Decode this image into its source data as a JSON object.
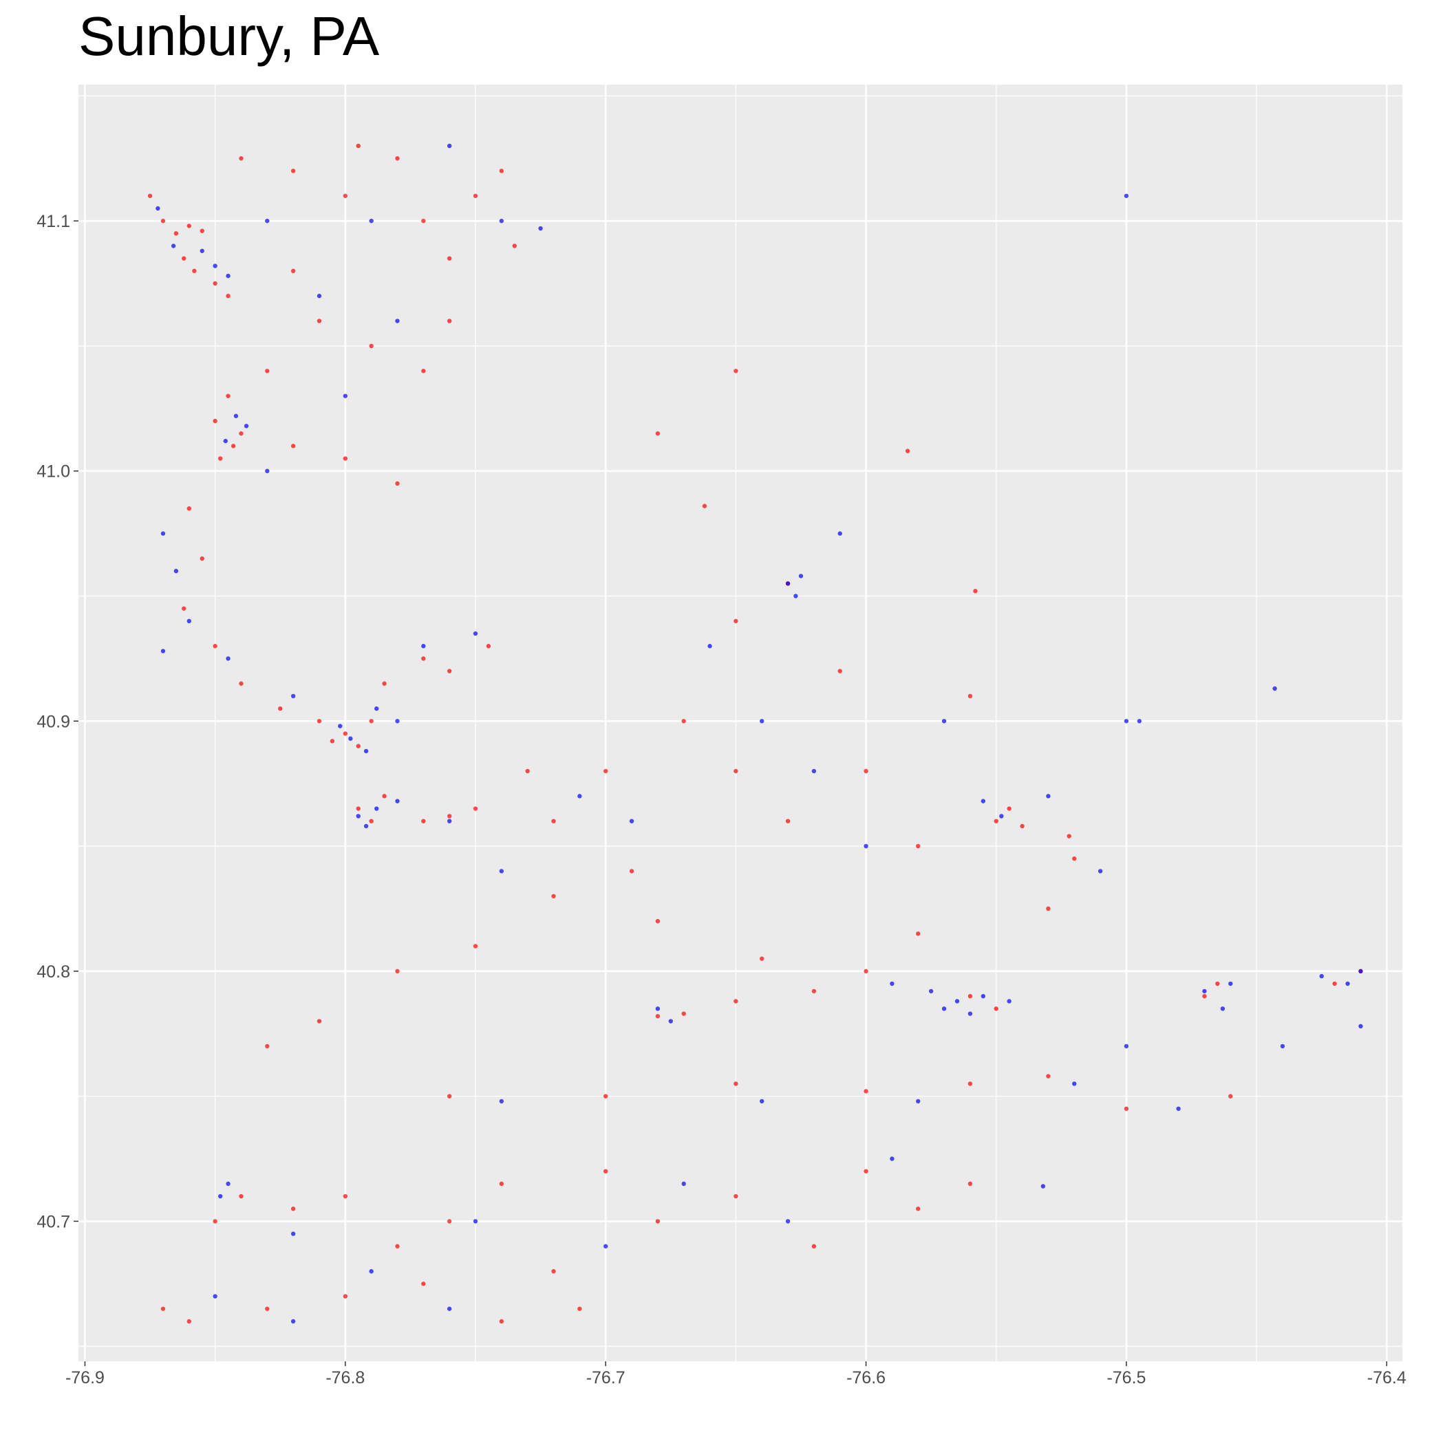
{
  "chart_data": {
    "type": "scatter",
    "title": "Sunbury, PA",
    "xlim": [
      -76.9025,
      -76.394
    ],
    "ylim": [
      40.644,
      41.1545
    ],
    "xticks": [
      -76.9,
      -76.8,
      -76.7,
      -76.6,
      -76.5,
      -76.4
    ],
    "yticks": [
      40.7,
      40.8,
      40.9,
      {
        "value": 41.0,
        "label": "41.0"
      },
      41.1
    ],
    "grid": true,
    "opacity": 0.7,
    "series": [
      {
        "color": "#ff0000",
        "x": [
          -76.87,
          -76.865,
          -76.86,
          -76.855,
          -76.862,
          -76.858,
          -76.85,
          -76.845,
          -76.875,
          -76.84,
          -76.82,
          -76.8,
          -76.795,
          -76.78,
          -76.77,
          -76.76,
          -76.75,
          -76.74,
          -76.735,
          -76.82,
          -76.81,
          -76.79,
          -76.77,
          -76.76,
          -76.83,
          -76.845,
          -76.85,
          -76.843,
          -76.848,
          -76.84,
          -76.82,
          -76.8,
          -76.78,
          -76.86,
          -76.855,
          -76.862,
          -76.85,
          -76.84,
          -76.825,
          -76.81,
          -76.8,
          -76.795,
          -76.79,
          -76.805,
          -76.785,
          -76.77,
          -76.76,
          -76.745,
          -76.795,
          -76.79,
          -76.785,
          -76.77,
          -76.76,
          -76.75,
          -76.73,
          -76.72,
          -76.7,
          -76.69,
          -76.67,
          -76.65,
          -76.63,
          -76.61,
          -76.6,
          -76.58,
          -76.56,
          -76.55,
          -76.545,
          -76.54,
          -76.52,
          -76.53,
          -76.58,
          -76.6,
          -76.64,
          -76.68,
          -76.72,
          -76.75,
          -76.78,
          -76.81,
          -76.83,
          -76.68,
          -76.67,
          -76.65,
          -76.62,
          -76.56,
          -76.55,
          -76.47,
          -76.465,
          -76.42,
          -76.41,
          -76.76,
          -76.7,
          -76.65,
          -76.6,
          -76.56,
          -76.53,
          -76.5,
          -76.46,
          -76.85,
          -76.84,
          -76.82,
          -76.8,
          -76.78,
          -76.76,
          -76.74,
          -76.72,
          -76.7,
          -76.68,
          -76.65,
          -76.62,
          -76.6,
          -76.58,
          -76.56,
          -76.87,
          -76.86,
          -76.83,
          -76.8,
          -76.77,
          -76.74,
          -76.71,
          -76.65,
          -76.63,
          -76.65,
          -76.68,
          -76.584,
          -76.662,
          -76.522,
          -76.558
        ],
        "values": [
          41.1,
          41.095,
          41.098,
          41.096,
          41.085,
          41.08,
          41.075,
          41.07,
          41.11,
          41.125,
          41.12,
          41.11,
          41.13,
          41.125,
          41.1,
          41.085,
          41.11,
          41.12,
          41.09,
          41.08,
          41.06,
          41.05,
          41.04,
          41.06,
          41.04,
          41.03,
          41.02,
          41.01,
          41.005,
          41.015,
          41.01,
          41.005,
          40.995,
          40.985,
          40.965,
          40.945,
          40.93,
          40.915,
          40.905,
          40.9,
          40.895,
          40.89,
          40.9,
          40.892,
          40.915,
          40.925,
          40.92,
          40.93,
          40.865,
          40.86,
          40.87,
          40.86,
          40.862,
          40.865,
          40.88,
          40.86,
          40.88,
          40.84,
          40.9,
          40.88,
          40.86,
          40.92,
          40.88,
          40.85,
          40.91,
          40.86,
          40.865,
          40.858,
          40.845,
          40.825,
          40.815,
          40.8,
          40.805,
          40.82,
          40.83,
          40.81,
          40.8,
          40.78,
          40.77,
          40.782,
          40.783,
          40.788,
          40.792,
          40.79,
          40.785,
          40.79,
          40.795,
          40.795,
          40.8,
          40.75,
          40.75,
          40.755,
          40.752,
          40.755,
          40.758,
          40.745,
          40.75,
          40.7,
          40.71,
          40.705,
          40.71,
          40.69,
          40.7,
          40.715,
          40.68,
          40.72,
          40.7,
          40.71,
          40.69,
          40.72,
          40.705,
          40.715,
          40.665,
          40.66,
          40.665,
          40.67,
          40.675,
          40.66,
          40.665,
          40.94,
          40.955,
          41.04,
          41.015,
          41.008,
          40.986,
          40.854,
          40.952
        ]
      },
      {
        "color": "#0000ff",
        "x": [
          -76.872,
          -76.866,
          -76.855,
          -76.85,
          -76.845,
          -76.83,
          -76.79,
          -76.76,
          -76.74,
          -76.725,
          -76.81,
          -76.78,
          -76.8,
          -76.842,
          -76.838,
          -76.846,
          -76.83,
          -76.87,
          -76.865,
          -76.87,
          -76.86,
          -76.845,
          -76.82,
          -76.798,
          -76.792,
          -76.802,
          -76.788,
          -76.78,
          -76.77,
          -76.75,
          -76.795,
          -76.788,
          -76.792,
          -76.78,
          -76.76,
          -76.74,
          -76.71,
          -76.69,
          -76.66,
          -76.64,
          -76.62,
          -76.6,
          -76.57,
          -76.555,
          -76.548,
          -76.53,
          -76.51,
          -76.5,
          -76.63,
          -76.627,
          -76.625,
          -76.61,
          -76.57,
          -76.565,
          -76.56,
          -76.555,
          -76.545,
          -76.575,
          -76.59,
          -76.47,
          -76.463,
          -76.46,
          -76.425,
          -76.415,
          -76.41,
          -76.44,
          -76.5,
          -76.68,
          -76.675,
          -76.74,
          -76.64,
          -76.58,
          -76.52,
          -76.48,
          -76.848,
          -76.845,
          -76.82,
          -76.79,
          -76.75,
          -76.7,
          -76.67,
          -76.63,
          -76.59,
          -76.85,
          -76.82,
          -76.76,
          -76.5,
          -76.443,
          -76.532,
          -76.495,
          -76.41
        ],
        "values": [
          41.105,
          41.09,
          41.088,
          41.082,
          41.078,
          41.1,
          41.1,
          41.13,
          41.1,
          41.097,
          41.07,
          41.06,
          41.03,
          41.022,
          41.018,
          41.012,
          41.0,
          40.975,
          40.96,
          40.928,
          40.94,
          40.925,
          40.91,
          40.893,
          40.888,
          40.898,
          40.905,
          40.9,
          40.93,
          40.935,
          40.862,
          40.865,
          40.858,
          40.868,
          40.86,
          40.84,
          40.87,
          40.86,
          40.93,
          40.9,
          40.88,
          40.85,
          40.9,
          40.868,
          40.862,
          40.87,
          40.84,
          40.9,
          40.955,
          40.95,
          40.958,
          40.975,
          40.785,
          40.788,
          40.783,
          40.79,
          40.788,
          40.792,
          40.795,
          40.792,
          40.785,
          40.795,
          40.798,
          40.795,
          40.8,
          40.77,
          40.77,
          40.785,
          40.78,
          40.748,
          40.748,
          40.748,
          40.755,
          40.745,
          40.71,
          40.715,
          40.695,
          40.68,
          40.7,
          40.69,
          40.715,
          40.7,
          40.725,
          40.67,
          40.66,
          40.665,
          41.11,
          40.913,
          40.714,
          40.9,
          40.778
        ]
      }
    ]
  }
}
